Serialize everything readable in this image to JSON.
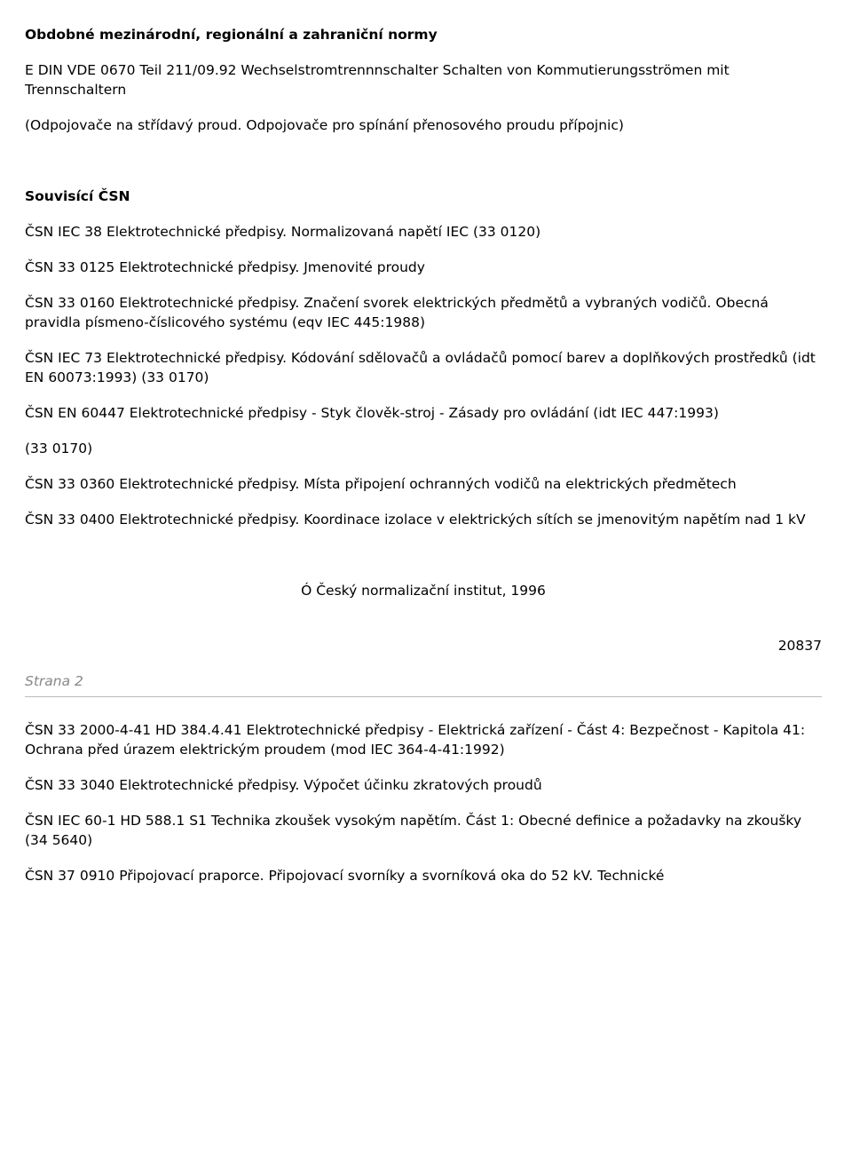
{
  "section1": {
    "title": "Obdobné mezinárodní, regionální a zahraniční normy",
    "para1_line1": "E DIN VDE 0670 Teil 211/09.92   Wechselstromtrennnschalter Schalten von Kommutierungsströmen mit Trennschaltern",
    "para2": "(Odpojovače na střídavý proud. Odpojovače pro spínání přenosového proudu přípojnic)"
  },
  "section2": {
    "title": "Souvisící ČSN",
    "items": [
      "ČSN IEC 38   Elektrotechnické předpisy. Normalizovaná napětí IEC (33 0120)",
      "ČSN 33 0125   Elektrotechnické předpisy. Jmenovité proudy",
      "ČSN 33 0160   Elektrotechnické předpisy. Značení svorek elektrických předmětů a vybraných vodičů. Obecná pravidla písmeno-číslicového systému (eqv IEC 445:1988)",
      "ČSN IEC 73 Elektrotechnické předpisy. Kódování sdělovačů a ovládačů pomocí barev a doplňkových prostředků (idt EN 60073:1993) (33 0170)",
      "ČSN EN 60447   Elektrotechnické předpisy - Styk člověk-stroj - Zásady pro ovládání (idt IEC 447:1993)",
      "(33 0170)",
      "ČSN 33 0360   Elektrotechnické předpisy. Místa připojení ochranných vodičů na elektrických předmětech",
      "ČSN 33 0400   Elektrotechnické předpisy. Koordinace izolace v elektrických sítích se jmenovitým napětím nad 1 kV"
    ]
  },
  "copyright": "Ó Český normalizační institut, 1996",
  "page_id": "20837",
  "page_label": "Strana 2",
  "section3": {
    "items": [
      "ČSN 33 2000-4-41 HD 384.4.41 Elektrotechnické předpisy - Elektrická zařízení - Část 4: Bezpečnost - Kapitola 41: Ochrana před úrazem elektrickým proudem (mod IEC 364-4-41:1992)",
      "ČSN 33 3040   Elektrotechnické předpisy. Výpočet účinku zkratových proudů",
      "ČSN IEC 60-1 HD 588.1 S1   Technika zkoušek vysokým napětím. Část 1: Obecné definice a požadavky na zkoušky (34 5640)",
      "ČSN 37 0910   Připojovací praporce. Připojovací svorníky a svorníková oka do 52 kV. Technické"
    ]
  }
}
